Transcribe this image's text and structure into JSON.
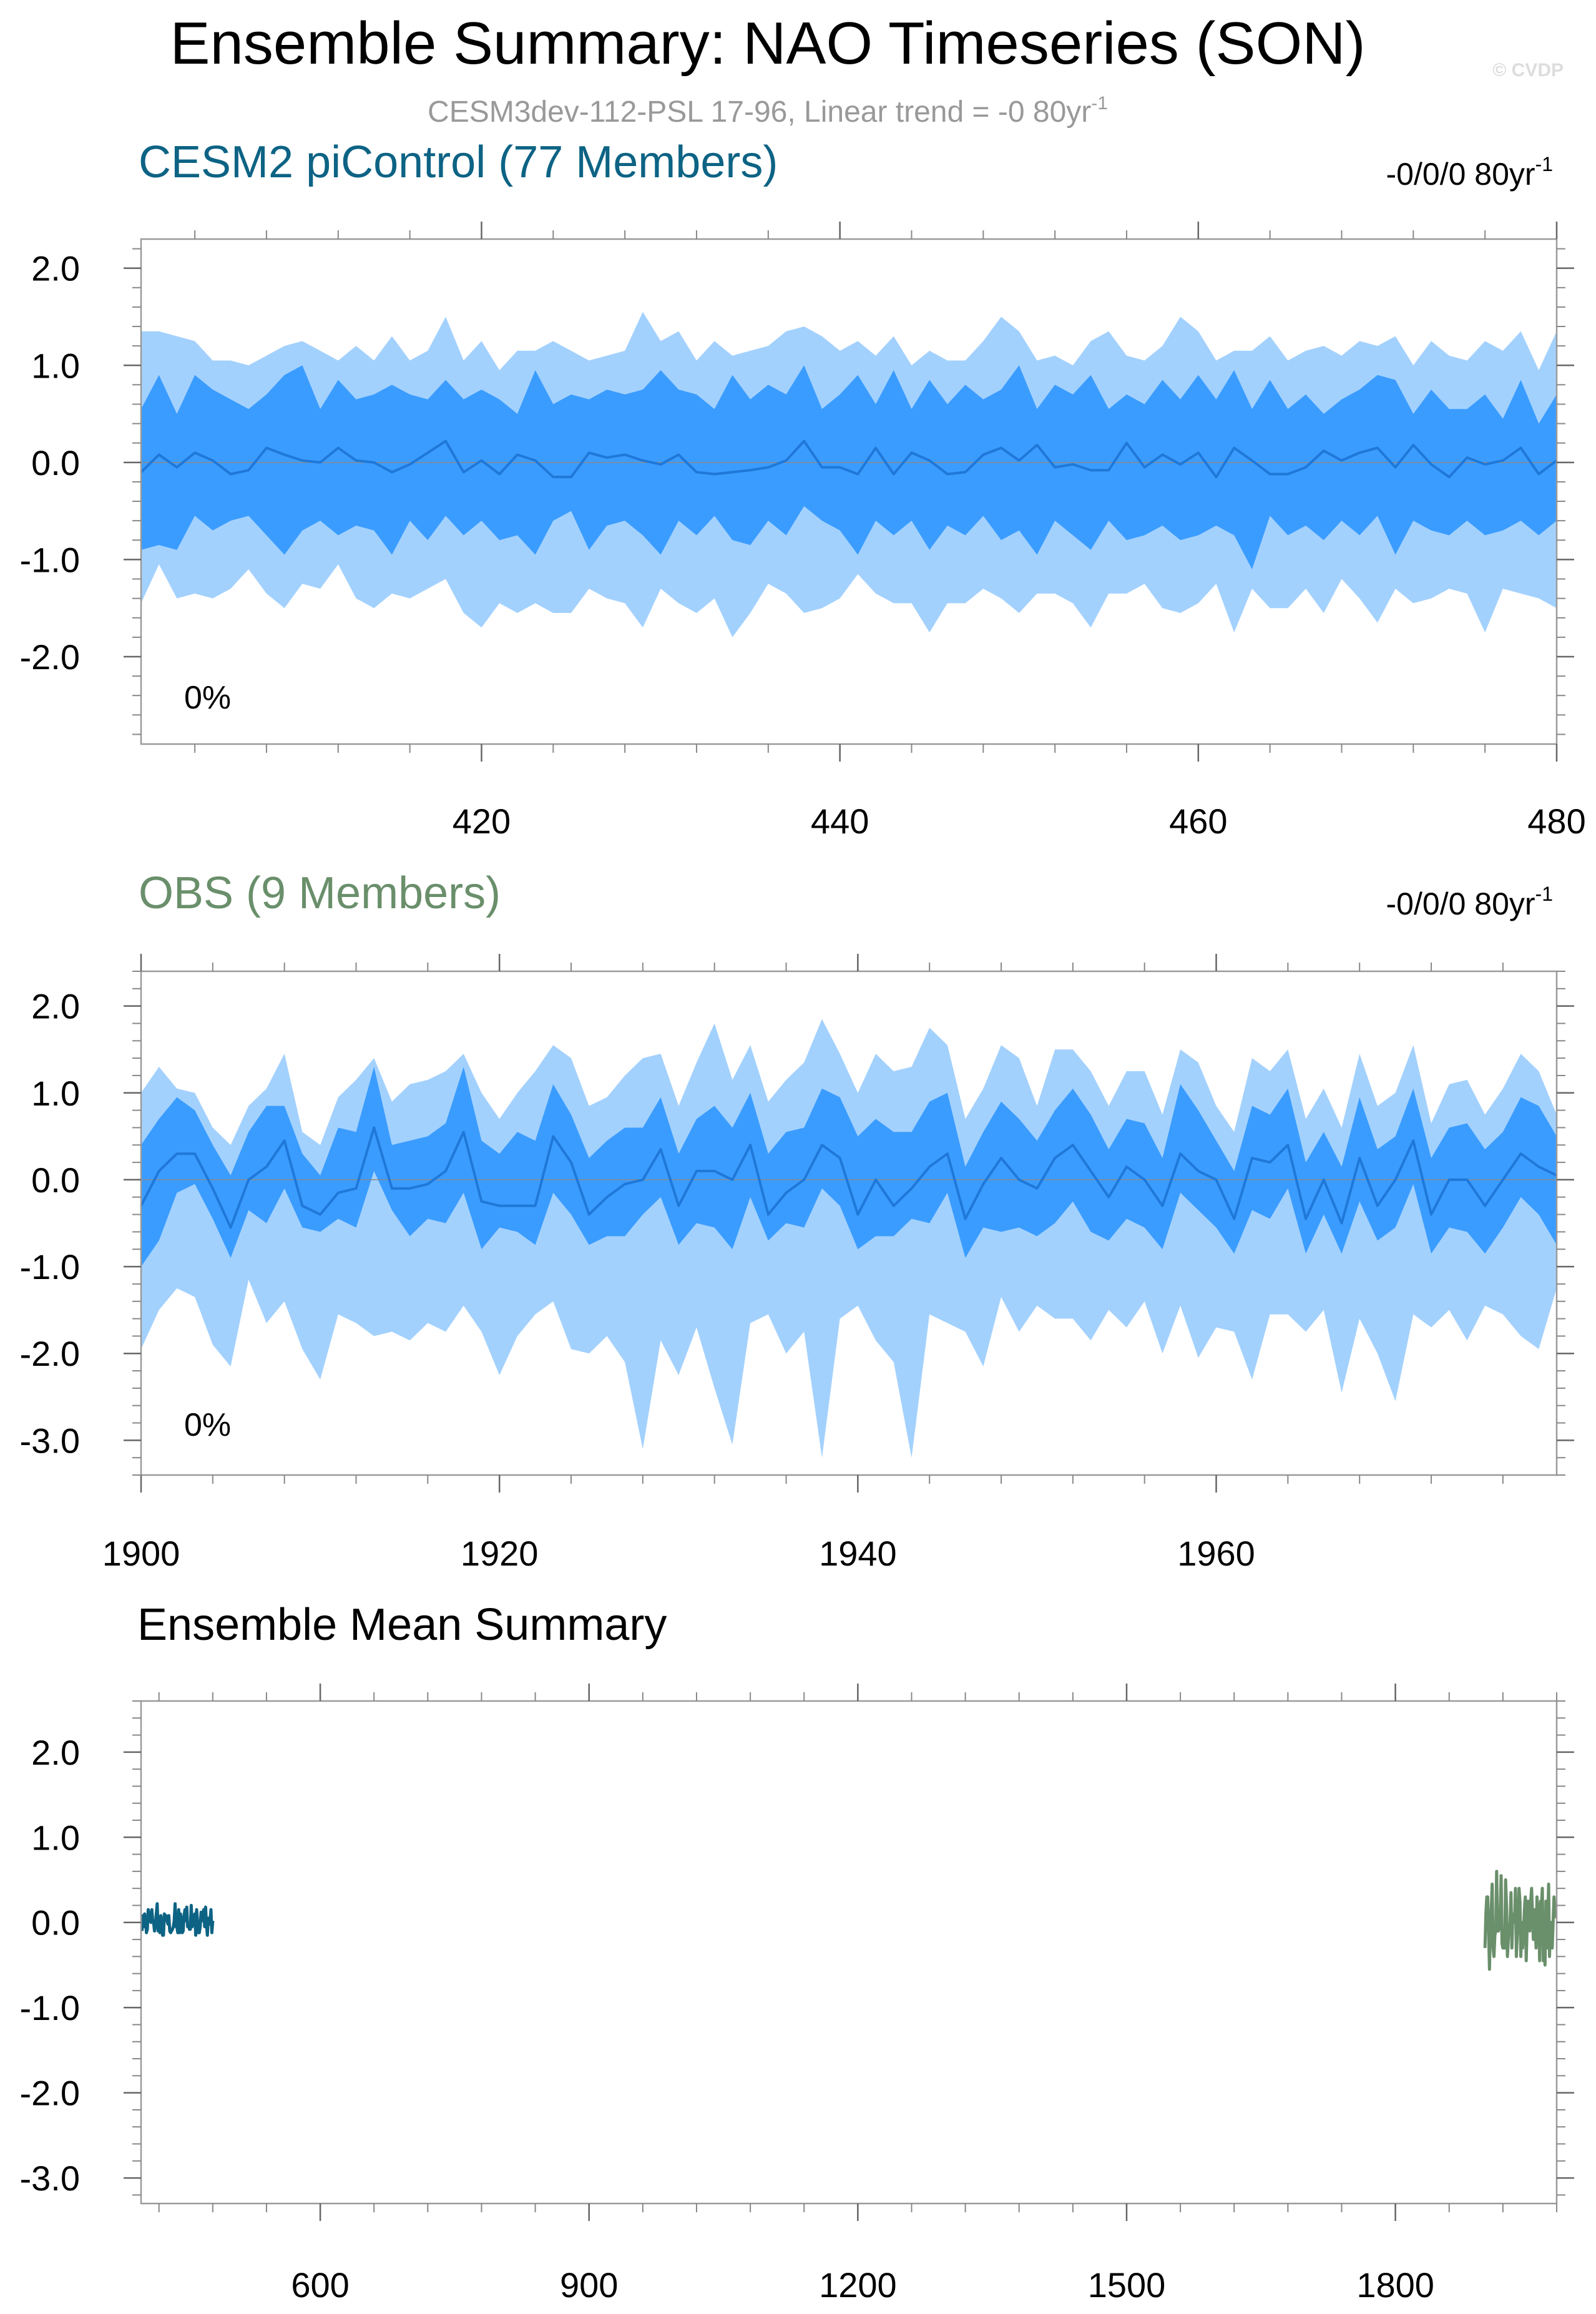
{
  "header": {
    "title": "Ensemble Summary: NAO Timeseries (SON)",
    "subtitle": "CESM3dev-112-PSL 17-96, Linear trend = -0 80yr",
    "subtitle_sup": "-1",
    "watermark": "© CVDP"
  },
  "colors": {
    "band_outer": "#a3d1fe",
    "band_inner": "#3a9cff",
    "mean_line": "#1f78d8",
    "cesm_title": "#0d6384",
    "obs_title": "#6a8f6b",
    "axis": "#000000"
  },
  "chart_data": [
    {
      "type": "area",
      "title": "CESM2 piControl (77 Members)",
      "trend_label": "-0/0/0 80yr",
      "trend_sup": "-1",
      "percent_label": "0%",
      "xlim": [
        401,
        480
      ],
      "ylim": [
        -2.9,
        2.3
      ],
      "xticks": [
        420,
        440,
        460,
        480
      ],
      "yticks": [
        2.0,
        1.0,
        0.0,
        -1.0,
        -2.0
      ],
      "ytick_labels": [
        "2.0",
        "1.0",
        "0.0",
        "-1.0",
        "-2.0"
      ],
      "x_start": 401,
      "mean": [
        -0.1,
        0.08,
        -0.05,
        0.1,
        0.02,
        -0.12,
        -0.08,
        0.15,
        0.08,
        0.02,
        0.0,
        0.15,
        0.02,
        0.0,
        -0.1,
        -0.02,
        0.1,
        0.22,
        -0.1,
        0.02,
        -0.12,
        0.08,
        0.02,
        -0.15,
        -0.15,
        0.1,
        0.05,
        0.08,
        0.02,
        -0.02,
        0.08,
        -0.1,
        -0.12,
        -0.1,
        -0.08,
        -0.05,
        0.02,
        0.22,
        -0.05,
        -0.05,
        -0.12,
        0.15,
        -0.12,
        0.1,
        0.02,
        -0.12,
        -0.1,
        0.08,
        0.15,
        0.02,
        0.18,
        -0.05,
        -0.02,
        -0.08,
        -0.08,
        0.2,
        -0.05,
        0.08,
        -0.02,
        0.1,
        -0.15,
        0.15,
        0.02,
        -0.12,
        -0.12,
        -0.05,
        0.12,
        0.02,
        0.1,
        0.15,
        -0.05,
        0.18,
        -0.02,
        -0.15,
        0.05,
        -0.02,
        0.02,
        0.15,
        -0.12,
        0.02
      ],
      "p25": [
        -0.9,
        -0.85,
        -0.9,
        -0.55,
        -0.7,
        -0.6,
        -0.55,
        -0.75,
        -0.95,
        -0.7,
        -0.6,
        -0.75,
        -0.65,
        -0.7,
        -0.95,
        -0.6,
        -0.8,
        -0.55,
        -0.75,
        -0.6,
        -0.8,
        -0.75,
        -0.95,
        -0.6,
        -0.5,
        -0.9,
        -0.65,
        -0.6,
        -0.75,
        -0.95,
        -0.6,
        -0.75,
        -0.55,
        -0.8,
        -0.85,
        -0.6,
        -0.75,
        -0.45,
        -0.6,
        -0.7,
        -0.95,
        -0.6,
        -0.75,
        -0.6,
        -0.9,
        -0.65,
        -0.75,
        -0.55,
        -0.8,
        -0.7,
        -0.95,
        -0.6,
        -0.75,
        -0.9,
        -0.6,
        -0.8,
        -0.75,
        -0.65,
        -0.8,
        -0.75,
        -0.65,
        -0.75,
        -1.1,
        -0.55,
        -0.75,
        -0.65,
        -0.8,
        -0.6,
        -0.75,
        -0.55,
        -0.95,
        -0.6,
        -0.7,
        -0.75,
        -0.6,
        -0.75,
        -0.7,
        -0.6,
        -0.75,
        -0.6
      ],
      "p75": [
        0.55,
        0.9,
        0.5,
        0.9,
        0.75,
        0.65,
        0.55,
        0.7,
        0.9,
        1.0,
        0.55,
        0.85,
        0.65,
        0.7,
        0.8,
        0.7,
        0.65,
        0.85,
        0.65,
        0.75,
        0.65,
        0.5,
        0.95,
        0.6,
        0.7,
        0.65,
        0.75,
        0.7,
        0.75,
        0.95,
        0.75,
        0.7,
        0.55,
        0.9,
        0.65,
        0.8,
        0.7,
        1.0,
        0.55,
        0.7,
        0.9,
        0.6,
        0.95,
        0.55,
        0.85,
        0.6,
        0.8,
        0.65,
        0.75,
        1.0,
        0.55,
        0.8,
        0.7,
        0.9,
        0.55,
        0.7,
        0.6,
        0.85,
        0.65,
        0.9,
        0.65,
        0.95,
        0.55,
        0.85,
        0.55,
        0.7,
        0.5,
        0.65,
        0.75,
        0.9,
        0.85,
        0.5,
        0.75,
        0.55,
        0.55,
        0.7,
        0.45,
        0.85,
        0.4,
        0.7
      ],
      "p05": [
        -1.45,
        -1.05,
        -1.4,
        -1.35,
        -1.4,
        -1.3,
        -1.1,
        -1.35,
        -1.5,
        -1.25,
        -1.3,
        -1.05,
        -1.4,
        -1.5,
        -1.35,
        -1.4,
        -1.3,
        -1.2,
        -1.55,
        -1.7,
        -1.45,
        -1.55,
        -1.45,
        -1.55,
        -1.55,
        -1.3,
        -1.4,
        -1.45,
        -1.7,
        -1.3,
        -1.45,
        -1.55,
        -1.4,
        -1.8,
        -1.55,
        -1.25,
        -1.35,
        -1.55,
        -1.5,
        -1.4,
        -1.15,
        -1.35,
        -1.45,
        -1.45,
        -1.75,
        -1.45,
        -1.45,
        -1.3,
        -1.4,
        -1.55,
        -1.35,
        -1.35,
        -1.45,
        -1.7,
        -1.35,
        -1.35,
        -1.25,
        -1.5,
        -1.55,
        -1.45,
        -1.25,
        -1.75,
        -1.3,
        -1.5,
        -1.5,
        -1.3,
        -1.55,
        -1.2,
        -1.4,
        -1.65,
        -1.3,
        -1.45,
        -1.4,
        -1.3,
        -1.35,
        -1.75,
        -1.3,
        -1.35,
        -1.4,
        -1.5
      ],
      "p95": [
        1.35,
        1.35,
        1.3,
        1.25,
        1.05,
        1.05,
        1.0,
        1.1,
        1.2,
        1.25,
        1.15,
        1.05,
        1.2,
        1.05,
        1.3,
        1.05,
        1.15,
        1.5,
        1.05,
        1.25,
        0.95,
        1.15,
        1.15,
        1.25,
        1.15,
        1.05,
        1.1,
        1.15,
        1.55,
        1.25,
        1.35,
        1.05,
        1.25,
        1.1,
        1.15,
        1.2,
        1.35,
        1.4,
        1.3,
        1.15,
        1.25,
        1.1,
        1.3,
        1.0,
        1.15,
        1.05,
        1.05,
        1.25,
        1.5,
        1.35,
        1.05,
        1.1,
        1.0,
        1.25,
        1.35,
        1.1,
        1.05,
        1.2,
        1.5,
        1.35,
        1.05,
        1.15,
        1.15,
        1.3,
        1.05,
        1.15,
        1.2,
        1.1,
        1.25,
        1.2,
        1.3,
        1.0,
        1.25,
        1.1,
        1.05,
        1.25,
        1.15,
        1.35,
        0.95,
        1.35
      ]
    },
    {
      "type": "area",
      "title": "OBS (9 Members)",
      "trend_label": "-0/0/0 80yr",
      "trend_sup": "-1",
      "percent_label": "0%",
      "xlim": [
        1900,
        1979
      ],
      "ylim": [
        -3.4,
        2.4
      ],
      "xticks": [
        1900,
        1920,
        1940,
        1960
      ],
      "yticks": [
        2.0,
        1.0,
        0.0,
        -1.0,
        -2.0,
        -3.0
      ],
      "ytick_labels": [
        "2.0",
        "1.0",
        "0.0",
        "-1.0",
        "-2.0",
        "-3.0"
      ],
      "x_start": 1900,
      "mean": [
        -0.3,
        0.1,
        0.3,
        0.3,
        -0.1,
        -0.55,
        0.0,
        0.15,
        0.45,
        -0.3,
        -0.4,
        -0.15,
        -0.1,
        0.6,
        -0.1,
        -0.1,
        -0.05,
        0.1,
        0.55,
        -0.25,
        -0.3,
        -0.3,
        -0.3,
        0.5,
        0.2,
        -0.4,
        -0.2,
        -0.05,
        0.0,
        0.35,
        -0.3,
        0.1,
        0.1,
        0.0,
        0.4,
        -0.4,
        -0.15,
        0.0,
        0.4,
        0.25,
        -0.4,
        0.0,
        -0.3,
        -0.1,
        0.15,
        0.3,
        -0.45,
        -0.05,
        0.25,
        0.0,
        -0.1,
        0.25,
        0.4,
        0.1,
        -0.2,
        0.15,
        0.0,
        -0.3,
        0.3,
        0.1,
        0.0,
        -0.45,
        0.25,
        0.2,
        0.4,
        -0.45,
        0.0,
        -0.5,
        0.25,
        -0.3,
        0.0,
        0.45,
        -0.4,
        0.0,
        0.0,
        -0.3,
        0.0,
        0.3,
        0.15,
        0.05
      ],
      "p25": [
        -1.0,
        -0.7,
        -0.15,
        -0.05,
        -0.45,
        -0.9,
        -0.35,
        -0.5,
        -0.1,
        -0.55,
        -0.6,
        -0.45,
        -0.55,
        0.1,
        -0.35,
        -0.65,
        -0.45,
        -0.5,
        -0.15,
        -0.8,
        -0.55,
        -0.6,
        -0.75,
        -0.15,
        -0.4,
        -0.75,
        -0.65,
        -0.65,
        -0.4,
        -0.2,
        -0.75,
        -0.5,
        -0.55,
        -0.8,
        -0.2,
        -0.7,
        -0.5,
        -0.55,
        -0.1,
        -0.3,
        -0.8,
        -0.65,
        -0.65,
        -0.45,
        -0.5,
        -0.15,
        -0.9,
        -0.55,
        -0.6,
        -0.55,
        -0.65,
        -0.5,
        -0.25,
        -0.6,
        -0.7,
        -0.45,
        -0.55,
        -0.8,
        -0.15,
        -0.35,
        -0.55,
        -0.85,
        -0.35,
        -0.45,
        -0.1,
        -0.85,
        -0.4,
        -0.85,
        -0.25,
        -0.7,
        -0.55,
        -0.05,
        -0.85,
        -0.55,
        -0.6,
        -0.85,
        -0.55,
        -0.2,
        -0.4,
        -0.75
      ],
      "p75": [
        0.4,
        0.7,
        0.95,
        0.8,
        0.4,
        0.05,
        0.55,
        0.85,
        0.85,
        0.3,
        0.05,
        0.6,
        0.55,
        1.3,
        0.4,
        0.45,
        0.5,
        0.65,
        1.3,
        0.45,
        0.3,
        0.55,
        0.45,
        1.1,
        0.75,
        0.25,
        0.45,
        0.6,
        0.6,
        0.95,
        0.3,
        0.7,
        0.85,
        0.6,
        1.0,
        0.3,
        0.55,
        0.6,
        1.05,
        0.95,
        0.5,
        0.7,
        0.55,
        0.55,
        0.9,
        1.0,
        0.15,
        0.55,
        0.9,
        0.7,
        0.45,
        0.8,
        1.05,
        0.75,
        0.35,
        0.7,
        0.65,
        0.25,
        1.1,
        0.8,
        0.45,
        0.1,
        0.85,
        0.75,
        1.05,
        0.2,
        0.55,
        0.15,
        0.95,
        0.35,
        0.5,
        1.05,
        0.25,
        0.6,
        0.65,
        0.35,
        0.55,
        0.95,
        0.85,
        0.5
      ],
      "p05": [
        -1.95,
        -1.5,
        -1.25,
        -1.35,
        -1.9,
        -2.15,
        -1.15,
        -1.65,
        -1.4,
        -1.95,
        -2.3,
        -1.55,
        -1.65,
        -1.8,
        -1.75,
        -1.85,
        -1.65,
        -1.75,
        -1.45,
        -1.75,
        -2.25,
        -1.8,
        -1.55,
        -1.4,
        -1.95,
        -2.0,
        -1.8,
        -2.1,
        -3.1,
        -1.85,
        -2.25,
        -1.7,
        -2.4,
        -3.05,
        -1.65,
        -1.55,
        -2.0,
        -1.75,
        -3.2,
        -1.6,
        -1.45,
        -1.85,
        -2.1,
        -3.2,
        -1.55,
        -1.65,
        -1.75,
        -2.15,
        -1.35,
        -1.75,
        -1.45,
        -1.6,
        -1.6,
        -1.85,
        -1.5,
        -1.7,
        -1.4,
        -2.0,
        -1.45,
        -2.05,
        -1.7,
        -1.75,
        -2.3,
        -1.55,
        -1.55,
        -1.75,
        -1.5,
        -2.45,
        -1.6,
        -2.0,
        -2.55,
        -1.55,
        -1.7,
        -1.5,
        -1.85,
        -1.45,
        -1.55,
        -1.8,
        -1.95,
        -1.25
      ],
      "p95": [
        1.0,
        1.3,
        1.05,
        1.0,
        0.6,
        0.4,
        0.85,
        1.05,
        1.45,
        0.55,
        0.4,
        0.95,
        1.15,
        1.4,
        0.9,
        1.1,
        1.15,
        1.25,
        1.45,
        1.0,
        0.7,
        1.0,
        1.25,
        1.55,
        1.4,
        0.85,
        0.95,
        1.2,
        1.4,
        1.45,
        0.85,
        1.35,
        1.8,
        1.15,
        1.55,
        0.9,
        1.15,
        1.35,
        1.85,
        1.45,
        1.0,
        1.45,
        1.25,
        1.3,
        1.75,
        1.55,
        0.7,
        1.05,
        1.55,
        1.4,
        0.85,
        1.5,
        1.5,
        1.25,
        0.85,
        1.25,
        1.25,
        0.75,
        1.5,
        1.35,
        0.85,
        0.55,
        1.4,
        1.25,
        1.5,
        0.7,
        1.05,
        0.6,
        1.45,
        0.85,
        1.0,
        1.55,
        0.65,
        1.1,
        1.15,
        0.75,
        1.05,
        1.45,
        1.25,
        0.75
      ]
    },
    {
      "type": "line",
      "title": "Ensemble Mean Summary",
      "xlim": [
        400,
        1980
      ],
      "ylim": [
        -3.3,
        2.6
      ],
      "xticks": [
        600,
        900,
        1200,
        1500,
        1800
      ],
      "yticks": [
        2.0,
        1.0,
        0.0,
        -1.0,
        -2.0,
        -3.0
      ],
      "ytick_labels": [
        "2.0",
        "1.0",
        "0.0",
        "-1.0",
        "-2.0",
        "-3.0"
      ],
      "series": [
        {
          "color": "#0d6384",
          "x_start": 401,
          "values": [
            -0.1,
            0.08,
            -0.05,
            0.1,
            0.02,
            -0.12,
            -0.08,
            0.15,
            0.08,
            0.02,
            0.0,
            0.15,
            0.02,
            0.0,
            -0.1,
            -0.02,
            0.1,
            0.22,
            -0.1,
            0.02,
            -0.12,
            0.08,
            0.02,
            -0.15,
            -0.15,
            0.1,
            0.05,
            0.08,
            0.02,
            -0.02,
            0.08,
            -0.1,
            -0.12,
            -0.1,
            -0.08,
            -0.05,
            0.02,
            0.22,
            -0.05,
            -0.05,
            -0.12,
            0.15,
            -0.12,
            0.1,
            0.02,
            -0.12,
            -0.1,
            0.08,
            0.15,
            0.02,
            0.18,
            -0.05,
            -0.02,
            -0.08,
            -0.08,
            0.2,
            -0.05,
            0.08,
            -0.02,
            0.1,
            -0.15,
            0.15,
            0.02,
            -0.12,
            -0.12,
            -0.05,
            0.12,
            0.02,
            0.1,
            0.15,
            -0.05,
            0.18,
            -0.02,
            -0.15,
            0.05,
            -0.02,
            0.02,
            0.15,
            -0.12,
            0.02
          ]
        },
        {
          "color": "#6a8f6b",
          "x_start": 1900,
          "values": [
            -0.3,
            0.1,
            0.3,
            0.3,
            -0.1,
            -0.55,
            0.0,
            0.15,
            0.45,
            -0.3,
            -0.4,
            -0.15,
            -0.1,
            0.6,
            -0.1,
            -0.1,
            -0.05,
            0.1,
            0.55,
            -0.25,
            -0.3,
            -0.3,
            -0.3,
            0.5,
            0.2,
            -0.4,
            -0.2,
            -0.05,
            0.0,
            0.35,
            -0.3,
            0.1,
            0.1,
            0.0,
            0.4,
            -0.4,
            -0.15,
            0.0,
            0.4,
            0.25,
            -0.4,
            0.0,
            -0.3,
            -0.1,
            0.15,
            0.3,
            -0.45,
            -0.05,
            0.25,
            0.0,
            -0.1,
            0.25,
            0.4,
            0.1,
            -0.2,
            0.15,
            0.0,
            -0.3,
            0.3,
            0.1,
            0.0,
            -0.45,
            0.25,
            0.2,
            0.4,
            -0.45,
            0.0,
            -0.5,
            0.25,
            -0.3,
            0.0,
            0.45,
            -0.4,
            0.0,
            0.0,
            -0.3,
            0.0,
            0.3,
            0.15,
            0.05
          ]
        }
      ]
    }
  ]
}
